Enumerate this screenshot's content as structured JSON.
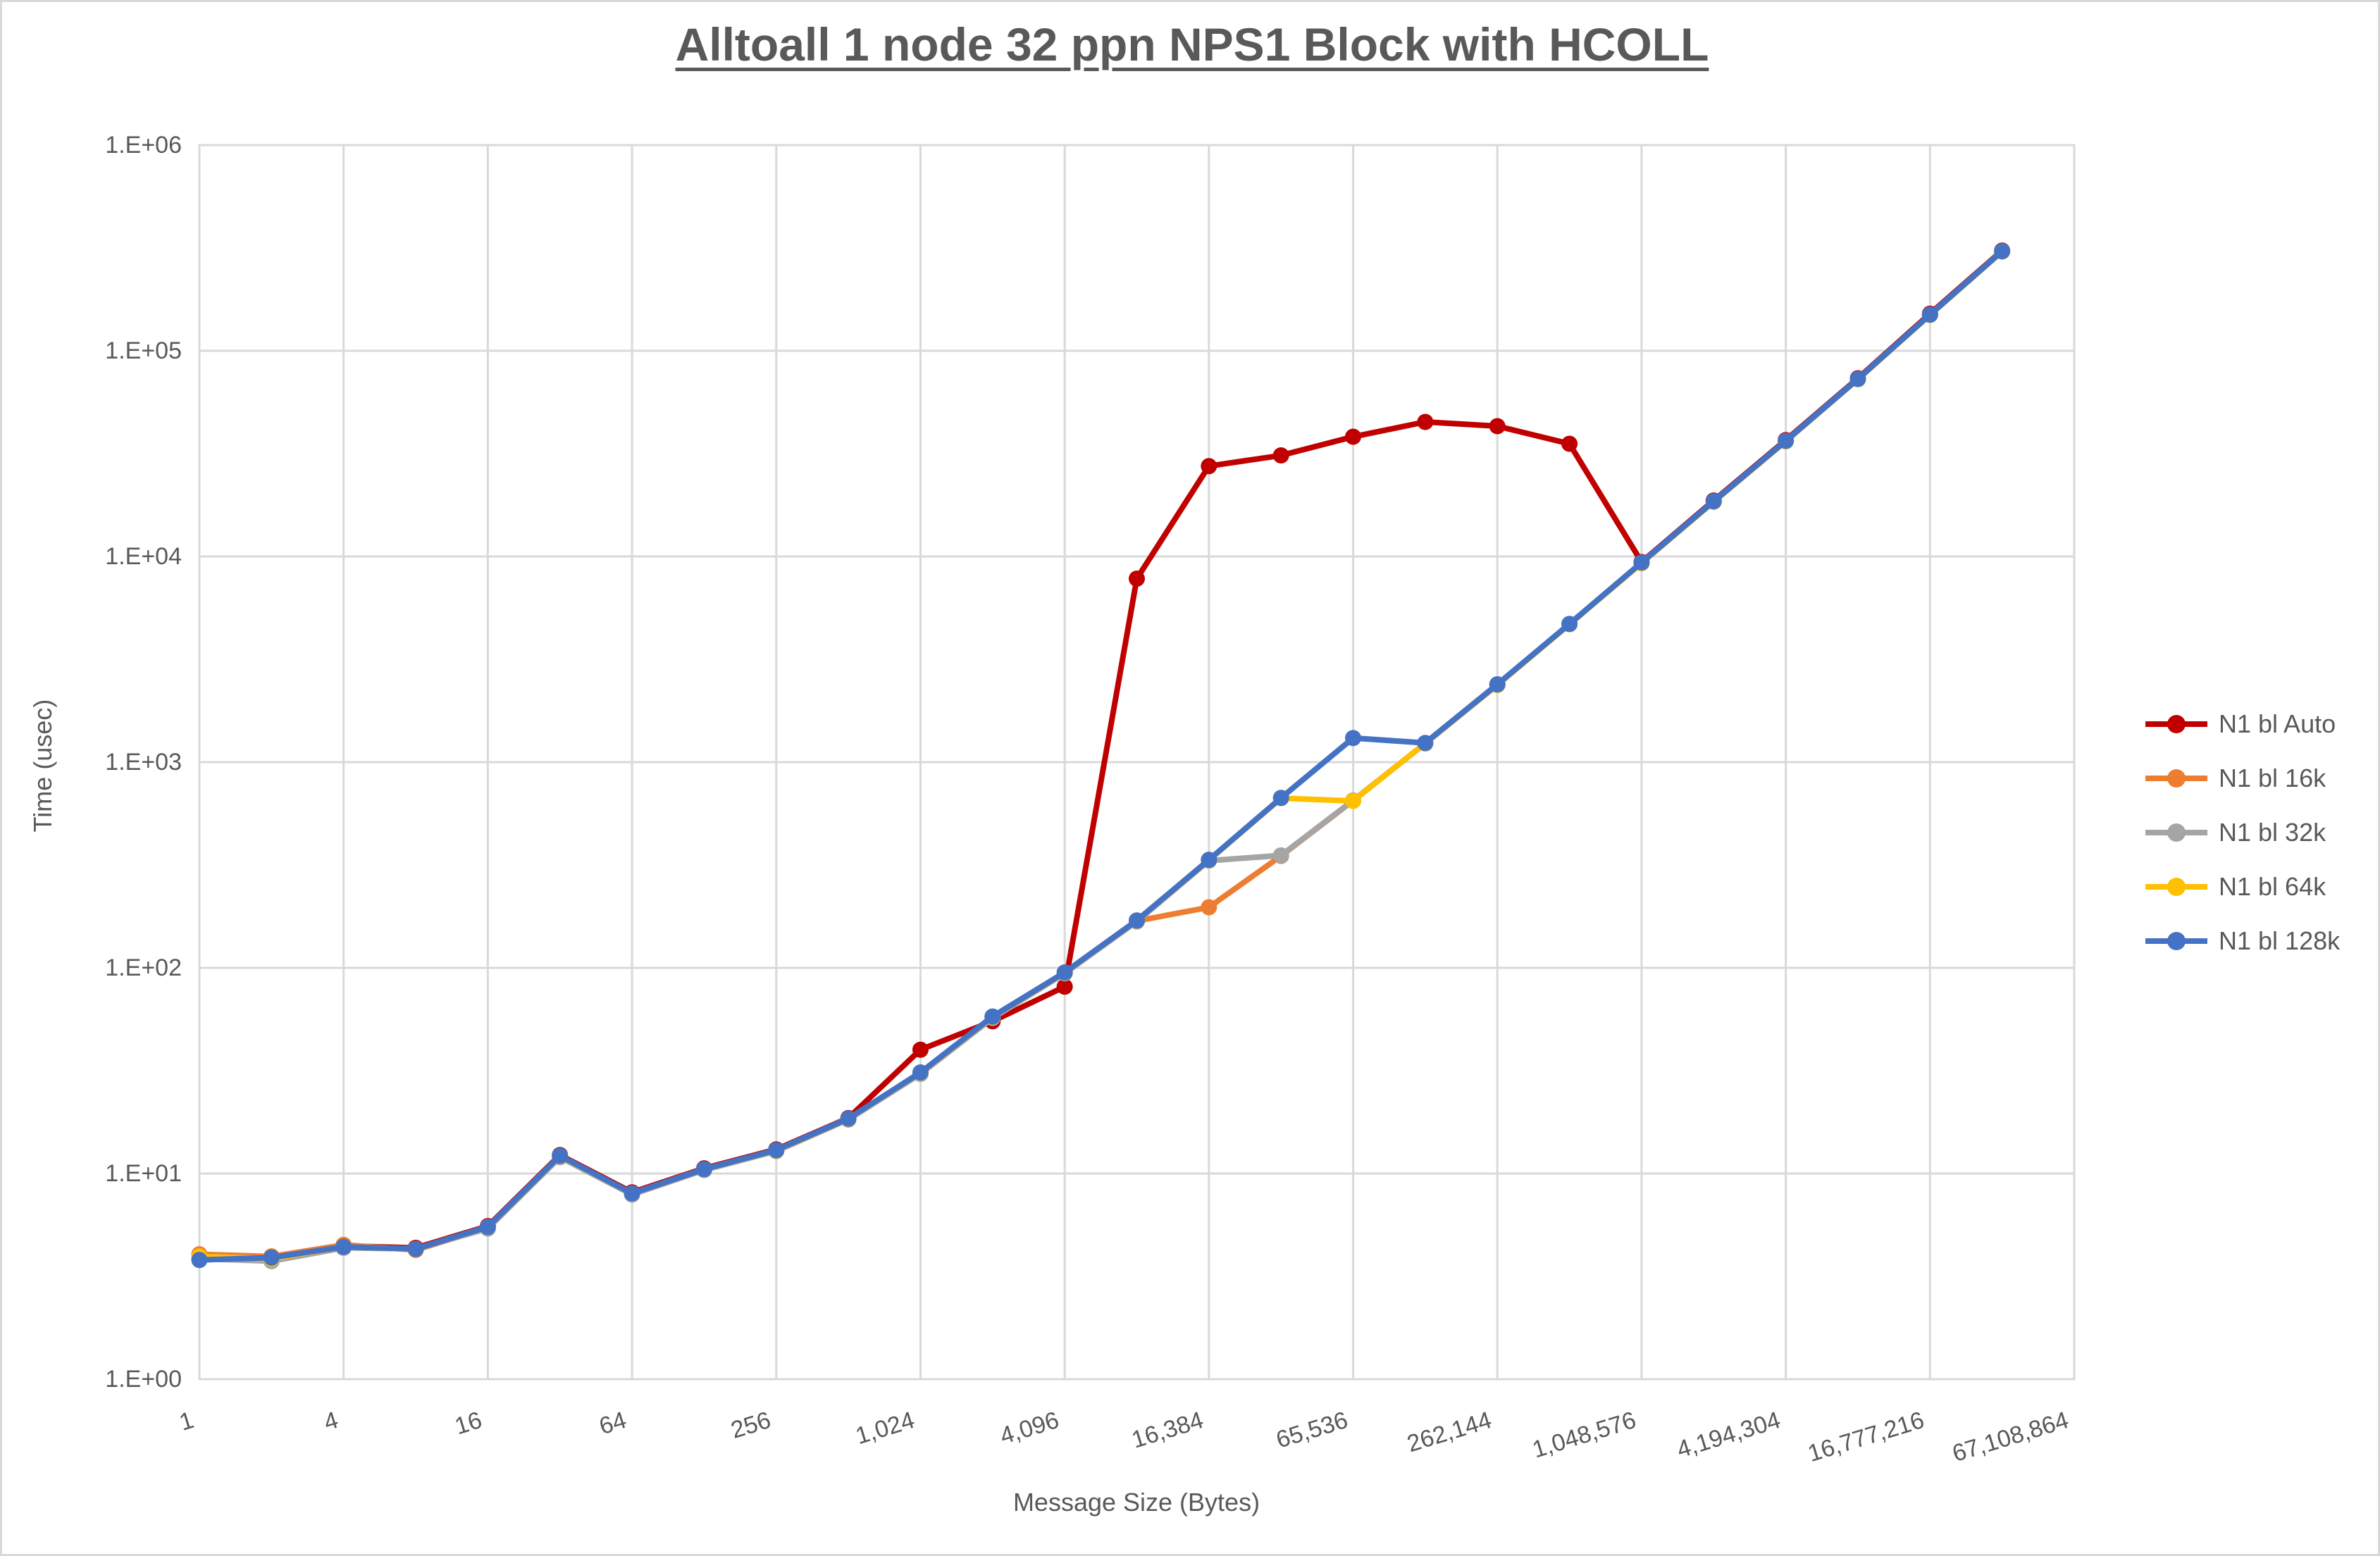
{
  "chart_data": {
    "type": "line",
    "title": "Alltoall 1 node 32 ppn NPS1 Block with HCOLL",
    "xlabel": "Message Size (Bytes)",
    "ylabel": "Time (usec)",
    "x_scale": "log2",
    "y_scale": "log10",
    "grid": true,
    "legend_position": "right",
    "ylim": [
      1,
      1000000
    ],
    "x_axis_max": 67108864,
    "y_tick_labels": [
      "1.E+00",
      "1.E+01",
      "1.E+02",
      "1.E+03",
      "1.E+04",
      "1.E+05",
      "1.E+06"
    ],
    "x_tick_labels": [
      "1",
      "4",
      "16",
      "64",
      "256",
      "1,024",
      "4,096",
      "16,384",
      "65,536",
      "262,144",
      "1,048,576",
      "4,194,304",
      "16,777,216",
      "67,108,864"
    ],
    "x": [
      1,
      2,
      4,
      8,
      16,
      32,
      64,
      128,
      256,
      512,
      1024,
      2048,
      4096,
      8192,
      16384,
      32768,
      65536,
      131072,
      262144,
      524288,
      1048576,
      2097152,
      4194304,
      8388608,
      16777216,
      33554432
    ],
    "colors": {
      "grid": "#D9D9D9",
      "axis_text": "#595959",
      "title_text": "#595959",
      "plot_border": "#D9D9D9"
    },
    "series": [
      {
        "name": "N1 bl Auto",
        "color": "#C00000",
        "values": [
          3.9,
          3.95,
          4.45,
          4.35,
          5.55,
          12.3,
          8.1,
          10.6,
          13.1,
          18.6,
          40,
          55,
          81,
          7800,
          27500,
          31000,
          38200,
          45100,
          43000,
          35300,
          9400,
          18700,
          36800,
          73500,
          151500,
          307000
        ]
      },
      {
        "name": "N1 bl 16k",
        "color": "#ED7D31",
        "values": [
          4.05,
          3.95,
          4.5,
          4.25,
          5.45,
          12.1,
          7.95,
          10.45,
          12.9,
          18.4,
          30.8,
          57.5,
          94.5,
          169,
          197,
          350,
          650,
          1235,
          2380,
          4690,
          9300,
          18500,
          36400,
          72900,
          149800,
          304500
        ]
      },
      {
        "name": "N1 bl 32k",
        "color": "#A5A5A5",
        "values": [
          3.85,
          3.75,
          4.35,
          4.3,
          5.4,
          12.0,
          7.9,
          10.4,
          12.85,
          18.3,
          30.5,
          57,
          94,
          168,
          332,
          352,
          652,
          1232,
          2372,
          4680,
          9280,
          18450,
          36300,
          72700,
          149300,
          303800
        ]
      },
      {
        "name": "N1 bl 64k",
        "color": "#FFC000",
        "values": [
          3.95,
          3.85,
          4.4,
          4.3,
          5.5,
          12.15,
          8.0,
          10.5,
          12.95,
          18.45,
          30.9,
          57.8,
          94.8,
          170,
          334,
          668,
          648,
          1236,
          2376,
          4685,
          9290,
          18470,
          36350,
          72800,
          149500,
          304000
        ]
      },
      {
        "name": "N1 bl 128k",
        "color": "#4472C4",
        "values": [
          3.8,
          3.9,
          4.4,
          4.3,
          5.5,
          12.2,
          8.0,
          10.5,
          13.0,
          18.5,
          31,
          58,
          95,
          170,
          335,
          670,
          1310,
          1240,
          2390,
          4700,
          9350,
          18550,
          36500,
          73000,
          150000,
          305000
        ]
      }
    ]
  }
}
